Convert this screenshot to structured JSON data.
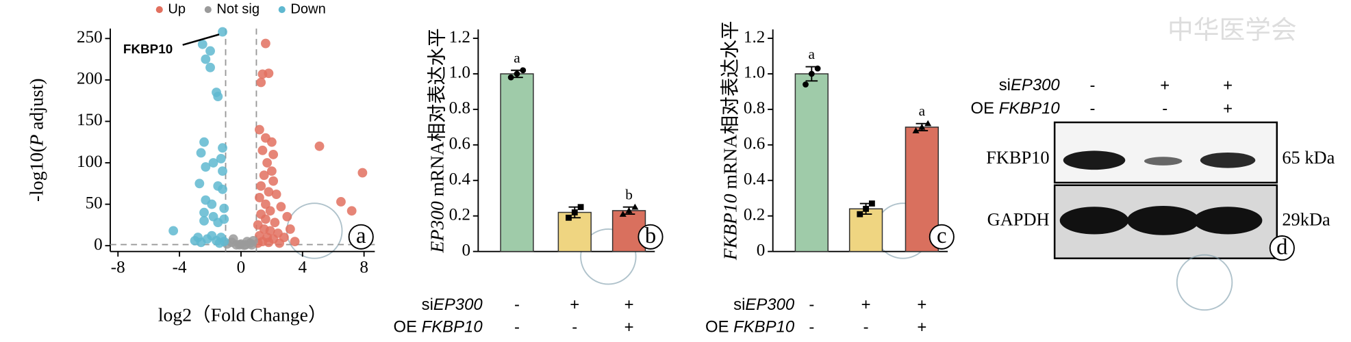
{
  "chart_data": [
    {
      "type": "scatter",
      "panel": "a",
      "x_label": "log2（Fold Change）",
      "y_label": [
        "-log10(",
        "P",
        " adjust)"
      ],
      "y_label_italic": [
        1
      ],
      "xlim": [
        -8.5,
        8.7
      ],
      "ylim": [
        -7,
        262
      ],
      "xticks": [
        -8,
        -4,
        0,
        4,
        8
      ],
      "yticks": [
        0,
        50,
        100,
        150,
        200,
        250
      ],
      "vlines": [
        -1,
        1
      ],
      "hline": 1.3,
      "annotation": "FKBP10",
      "annotation_point": [
        -1.2,
        258
      ],
      "series": [
        {
          "name": "Up",
          "color": "#e2705f",
          "x": [
            1.6,
            1.8,
            1.4,
            1.3,
            1.2,
            1.6,
            2,
            5.1,
            1.4,
            2.1,
            1.7,
            2,
            1.5,
            2.1,
            1.3,
            1.8,
            2.3,
            1.2,
            1.6,
            2.6,
            1.9,
            1.3,
            3,
            1.6,
            2.2,
            7.9,
            6.5,
            7.2,
            1.1,
            1.5,
            1.9,
            2.4,
            1.2,
            1.7,
            2.1,
            2.8,
            1.4,
            1.8,
            1.1,
            2.5,
            3.5,
            3.2
          ],
          "values": [
            244,
            208,
            207,
            197,
            140,
            130,
            125,
            120,
            115,
            110,
            100,
            90,
            85,
            78,
            72,
            65,
            62,
            58,
            50,
            47,
            42,
            38,
            35,
            32,
            28,
            88,
            53,
            42,
            25,
            20,
            18,
            15,
            12,
            10,
            8,
            10,
            5,
            4,
            3,
            3,
            5,
            20
          ]
        },
        {
          "name": "Not sig",
          "color": "#9a9a9a",
          "x": [
            -0.9,
            -0.6,
            -0.3,
            0,
            0.3,
            0.6,
            0.8,
            -0.5,
            0.4,
            -0.1,
            0.2,
            0.7
          ],
          "values": [
            2,
            4,
            1,
            2,
            1,
            3,
            6,
            8,
            5,
            1,
            0.5,
            1
          ]
        },
        {
          "name": "Down",
          "color": "#5fb8d0",
          "x": [
            -1.2,
            -2.5,
            -2,
            -2.3,
            -2,
            -1.6,
            -1.5,
            -2.4,
            -1.2,
            -2.6,
            -1.3,
            -1.8,
            -2.3,
            -1.2,
            -2.7,
            -1.5,
            -1.2,
            -2.3,
            -1.9,
            -1.1,
            -2.4,
            -1.8,
            -1.1,
            -4.4,
            -2.4,
            -1.5,
            -2.8,
            -2.2,
            -1.9,
            -1.6,
            -1.3,
            -1.1,
            -3,
            -2.6,
            -1.4
          ],
          "values": [
            258,
            243,
            235,
            225,
            215,
            185,
            180,
            125,
            118,
            112,
            105,
            100,
            95,
            90,
            75,
            72,
            68,
            55,
            50,
            45,
            40,
            35,
            32,
            18,
            30,
            28,
            10,
            8,
            12,
            6,
            10,
            5,
            6,
            4,
            3
          ]
        }
      ]
    },
    {
      "type": "bar",
      "panel": "b",
      "y_label": [
        "EP300",
        " mRNA相对表达水平"
      ],
      "y_label_italic": [
        0
      ],
      "ylim": [
        0,
        1.25
      ],
      "yticks": [
        0,
        0.2,
        0.4,
        0.6,
        0.8,
        {
          "value": 1,
          "label": "1.0"
        },
        1.2
      ],
      "values": [
        1.0,
        0.22,
        0.23
      ],
      "errors": [
        0.02,
        0.03,
        0.02
      ],
      "points": [
        [
          0.98,
          1.0,
          1.02
        ],
        [
          0.19,
          0.22,
          0.25
        ],
        [
          0.21,
          0.23,
          0.25
        ]
      ],
      "letters": [
        "a",
        null,
        "b"
      ],
      "colors": [
        "#9fcba9",
        "#efd581",
        "#d9705e"
      ],
      "conditions": [
        {
          "label": [
            "si",
            "EP300"
          ],
          "label_italic": [
            1
          ],
          "values": [
            "-",
            "+",
            "+"
          ]
        },
        {
          "label": [
            "OE ",
            "FKBP10"
          ],
          "label_italic": [
            1
          ],
          "values": [
            "-",
            "-",
            "+"
          ]
        }
      ]
    },
    {
      "type": "bar",
      "panel": "c",
      "y_label": [
        "FKBP10",
        " mRNA相对表达水平"
      ],
      "y_label_italic": [
        0
      ],
      "ylim": [
        0,
        1.25
      ],
      "yticks": [
        0,
        0.2,
        0.4,
        0.6,
        0.8,
        {
          "value": 1,
          "label": "1.0"
        },
        1.2
      ],
      "values": [
        1.0,
        0.24,
        0.7
      ],
      "errors": [
        0.04,
        0.03,
        0.02
      ],
      "points": [
        [
          0.94,
          1.0,
          1.03
        ],
        [
          0.21,
          0.24,
          0.27
        ],
        [
          0.68,
          0.7,
          0.72
        ]
      ],
      "letters": [
        "a",
        null,
        "a"
      ],
      "colors": [
        "#9fcba9",
        "#efd581",
        "#d9705e"
      ],
      "conditions": [
        {
          "label": [
            "si",
            "EP300"
          ],
          "label_italic": [
            1
          ],
          "values": [
            "-",
            "+",
            "+"
          ]
        },
        {
          "label": [
            "OE ",
            "FKBP10"
          ],
          "label_italic": [
            1
          ],
          "values": [
            "-",
            "-",
            "+"
          ]
        }
      ]
    }
  ],
  "blot": {
    "panel": "d",
    "conditions": [
      {
        "label": [
          "si",
          "EP300"
        ],
        "label_italic": [
          1
        ],
        "values": [
          "-",
          "+",
          "+"
        ]
      },
      {
        "label": [
          "OE ",
          "FKBP10"
        ],
        "label_italic": [
          1
        ],
        "values": [
          "-",
          "-",
          "+"
        ]
      }
    ],
    "rows": [
      {
        "name": "FKBP10",
        "size": "65 kDa"
      },
      {
        "name": "GAPDH",
        "size": "29kDa"
      }
    ]
  },
  "watermark": "中华医学会"
}
